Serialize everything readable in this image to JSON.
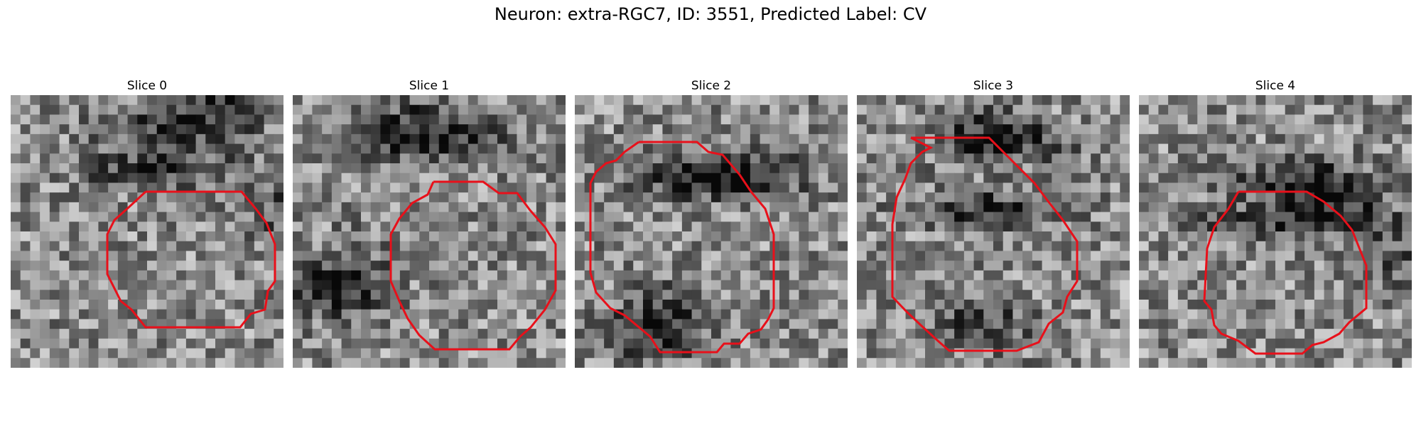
{
  "figure": {
    "title": "Neuron: extra-RGC7, ID: 3551, Predicted Label: CV"
  },
  "colors": {
    "contour": "#e8101a",
    "background": "#ffffff"
  },
  "panels": [
    {
      "title": "Slice 0"
    },
    {
      "title": "Slice 1"
    },
    {
      "title": "Slice 2"
    },
    {
      "title": "Slice 3"
    },
    {
      "title": "Slice 4"
    }
  ]
}
